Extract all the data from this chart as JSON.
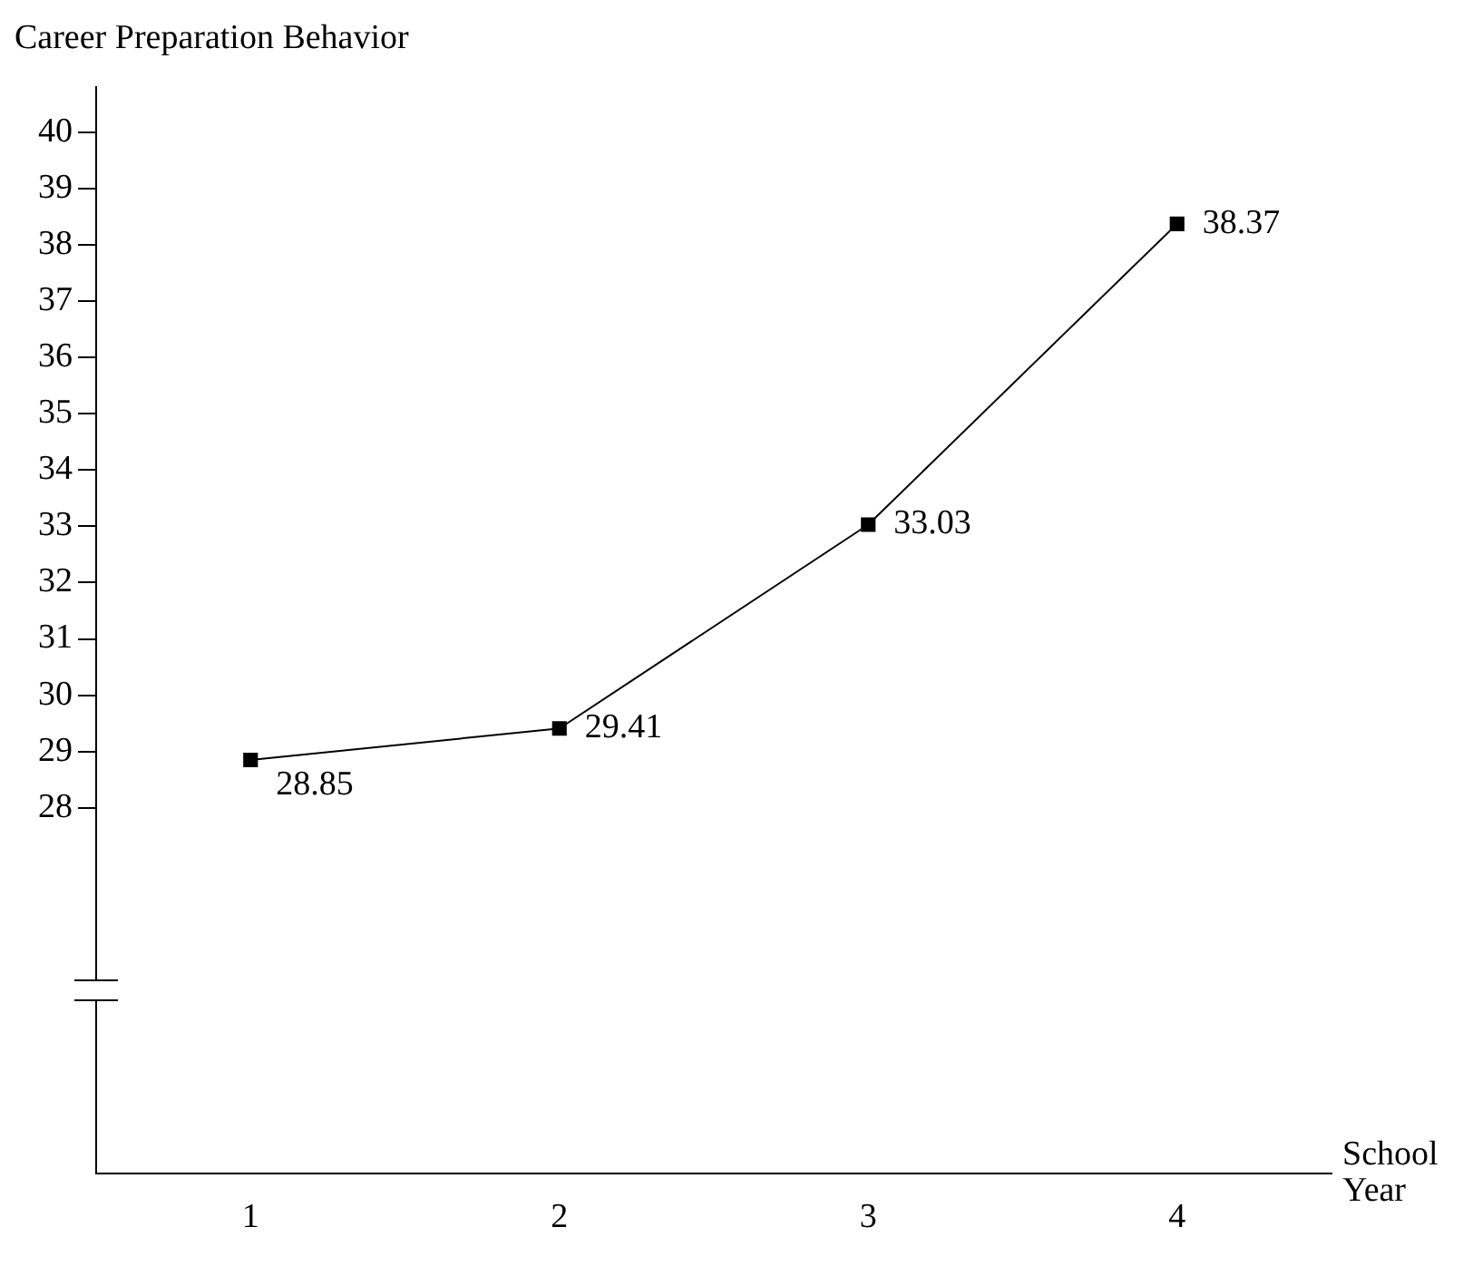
{
  "chart_data": {
    "type": "line",
    "xlabel": "School Year",
    "ylabel": "Career Preparation Behavior",
    "categories": [
      "1",
      "2",
      "3",
      "4"
    ],
    "series": [
      {
        "color": "#000000",
        "values": [
          28.85,
          29.41,
          33.03,
          38.37
        ]
      }
    ],
    "ylim": [
      21.5,
      40.8
    ],
    "yticks": [
      28,
      29,
      30,
      31,
      32,
      33,
      34,
      35,
      36,
      37,
      38,
      39,
      40
    ],
    "marker": "square",
    "line_style": "solid",
    "grid": false,
    "legend": false,
    "data_labels": true
  }
}
